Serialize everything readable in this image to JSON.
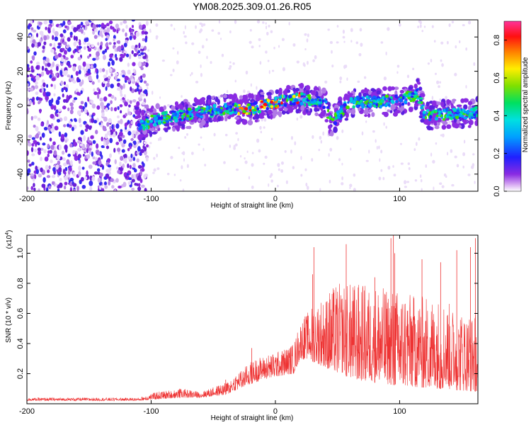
{
  "chart_data": [
    {
      "type": "heatmap",
      "title": "YM08.2025.309.01.26.R05",
      "xlabel": "Height of straight line (km)",
      "ylabel": "Frequency (Hz)",
      "xlim": [
        -200,
        163
      ],
      "ylim": [
        -50,
        50
      ],
      "x_ticks": [
        -200,
        -100,
        0,
        100
      ],
      "y_ticks": [
        40,
        20,
        0,
        -20,
        -40
      ],
      "colorbar": {
        "label": "Normalized spectral amplitude",
        "range": [
          0.0,
          0.9
        ],
        "ticks": [
          "0.0",
          "0.2",
          "0.4",
          "0.6",
          "0.8"
        ],
        "ticks_values": [
          0.0,
          0.2,
          0.4,
          0.6,
          0.8
        ]
      },
      "ridge": {
        "description_points": [
          {
            "x": -110,
            "y": -12
          },
          {
            "x": -95,
            "y": -8
          },
          {
            "x": -80,
            "y": -6
          },
          {
            "x": -60,
            "y": -4
          },
          {
            "x": -40,
            "y": -2
          },
          {
            "x": -20,
            "y": -2
          },
          {
            "x": 0,
            "y": 2
          },
          {
            "x": 20,
            "y": 4
          },
          {
            "x": 40,
            "y": 1
          },
          {
            "x": 45,
            "y": -10
          },
          {
            "x": 60,
            "y": 2
          },
          {
            "x": 80,
            "y": 2
          },
          {
            "x": 100,
            "y": 3
          },
          {
            "x": 115,
            "y": 7
          },
          {
            "x": 120,
            "y": -6
          },
          {
            "x": 140,
            "y": -5
          },
          {
            "x": 163,
            "y": -4
          }
        ]
      },
      "noise_region": {
        "x_from": -200,
        "x_to": -103
      }
    },
    {
      "type": "line",
      "xlabel": "Height of straight line (km)",
      "ylabel": "SNR (10 * v/v)",
      "scale_label": "(x10",
      "scale_exponent": "4",
      "scale_close": ")",
      "xlim": [
        -200,
        163
      ],
      "ylim": [
        0.0,
        1.12
      ],
      "x_ticks": [
        -200,
        -100,
        0,
        100
      ],
      "y_ticks": [
        0.2,
        0.4,
        0.6,
        0.8,
        1.0
      ],
      "y_tick_labels": [
        "0.2",
        "0.4",
        "0.6",
        "0.8",
        "1.0"
      ],
      "color": "#ee3333",
      "envelope": [
        {
          "x": -200,
          "base": 0.02,
          "peak": 0.04
        },
        {
          "x": -110,
          "base": 0.02,
          "peak": 0.04
        },
        {
          "x": -95,
          "base": 0.03,
          "peak": 0.08
        },
        {
          "x": -75,
          "base": 0.04,
          "peak": 0.1
        },
        {
          "x": -60,
          "base": 0.04,
          "peak": 0.08
        },
        {
          "x": -40,
          "base": 0.06,
          "peak": 0.14
        },
        {
          "x": -20,
          "base": 0.13,
          "peak": 0.28
        },
        {
          "x": -10,
          "base": 0.16,
          "peak": 0.32
        },
        {
          "x": 0,
          "base": 0.18,
          "peak": 0.34
        },
        {
          "x": 15,
          "base": 0.2,
          "peak": 0.4
        },
        {
          "x": 20,
          "base": 0.3,
          "peak": 0.55
        },
        {
          "x": 30,
          "base": 0.28,
          "peak": 0.65
        },
        {
          "x": 50,
          "base": 0.2,
          "peak": 0.8
        },
        {
          "x": 70,
          "base": 0.15,
          "peak": 0.8
        },
        {
          "x": 100,
          "base": 0.12,
          "peak": 0.75
        },
        {
          "x": 130,
          "base": 0.1,
          "peak": 0.7
        },
        {
          "x": 163,
          "base": 0.08,
          "peak": 0.6
        }
      ],
      "spikes": [
        {
          "x": -77,
          "value": 0.1
        },
        {
          "x": -40,
          "value": 0.16
        },
        {
          "x": -19,
          "value": 0.37
        },
        {
          "x": 30,
          "value": 0.86
        },
        {
          "x": 31,
          "value": 1.04
        },
        {
          "x": 57,
          "value": 1.06
        },
        {
          "x": 80,
          "value": 0.84
        },
        {
          "x": 93,
          "value": 1.1
        },
        {
          "x": 95,
          "value": 1.12
        },
        {
          "x": 96,
          "value": 1.0
        },
        {
          "x": 118,
          "value": 0.96
        },
        {
          "x": 133,
          "value": 0.94
        },
        {
          "x": 146,
          "value": 1.02
        },
        {
          "x": 157,
          "value": 1.04
        },
        {
          "x": 161,
          "value": 1.1
        }
      ]
    }
  ]
}
